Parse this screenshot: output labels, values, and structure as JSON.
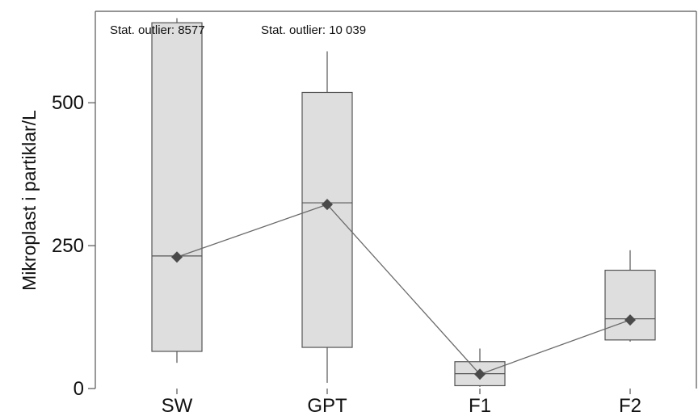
{
  "chart_data": {
    "type": "box",
    "ylabel": "Mikroplast i partiklar/L",
    "xlabel": "",
    "ylim": [
      0,
      660
    ],
    "yticks": [
      0,
      250,
      500
    ],
    "grid": false,
    "categories": [
      "SW",
      "GPT",
      "F1",
      "F2"
    ],
    "boxes": [
      {
        "category": "SW",
        "whisker_low": 45,
        "q1": 65,
        "median": 232,
        "q3": 640,
        "whisker_high": 648,
        "mean": 230
      },
      {
        "category": "GPT",
        "whisker_low": 10,
        "q1": 72,
        "median": 325,
        "q3": 518,
        "whisker_high": 590,
        "mean": 322
      },
      {
        "category": "F1",
        "whisker_low": 3,
        "q1": 5,
        "median": 26,
        "q3": 47,
        "whisker_high": 70,
        "mean": 25
      },
      {
        "category": "F2",
        "whisker_low": 82,
        "q1": 85,
        "median": 122,
        "q3": 207,
        "whisker_high": 242,
        "mean": 120
      }
    ],
    "mean_line": true,
    "annotations": [
      {
        "text": "Stat. outlier: 8577",
        "category": "SW"
      },
      {
        "text": "Stat. outlier: 10 039",
        "category": "GPT"
      }
    ],
    "colors": {
      "box_fill": "#dedede",
      "box_stroke": "#555555",
      "mean_marker": "#4a4a4a",
      "mean_line": "#6a6a6a",
      "axis": "#555555"
    }
  }
}
